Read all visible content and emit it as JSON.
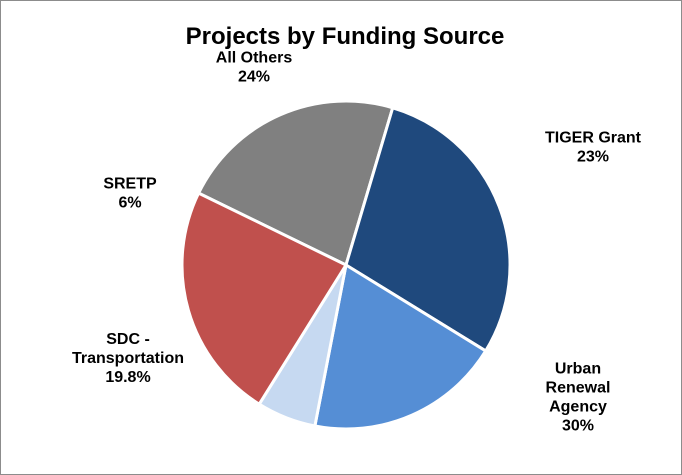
{
  "chart_data": {
    "type": "pie",
    "title": "Projects by Funding Source",
    "slices": [
      {
        "label": [
          "TIGER Grant"
        ],
        "value_label": "23%",
        "value": 23,
        "color": "#808080"
      },
      {
        "label": [
          "Urban",
          "Renewal",
          "Agency"
        ],
        "value_label": "30%",
        "value": 30,
        "color": "#1f497d"
      },
      {
        "label": [
          "SDC -",
          "Transportation"
        ],
        "value_label": "19.8%",
        "value": 19.8,
        "color": "#558ed5"
      },
      {
        "label": [
          "SRETP"
        ],
        "value_label": "6%",
        "value": 6,
        "color": "#c6d9f1"
      },
      {
        "label": [
          "All Others"
        ],
        "value_label": "24%",
        "value": 24,
        "color": "#c0504d"
      }
    ],
    "slice_border_color": "#ffffff"
  }
}
